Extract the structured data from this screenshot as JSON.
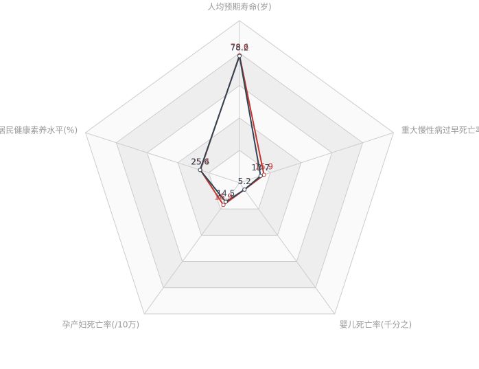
{
  "chart_data": {
    "type": "radar",
    "indicators": [
      {
        "name": "人均预期寿命(岁)",
        "max": 100
      },
      {
        "name": "重大慢性病过早死亡率(%)",
        "max": 100
      },
      {
        "name": "婴儿死亡率(千分之)",
        "max": 100
      },
      {
        "name": "孕产妇死亡率(/10万)",
        "max": 100
      },
      {
        "name": "居民健康素养水平(%)",
        "max": 100
      }
    ],
    "series": [
      {
        "color": "#c23531",
        "values": [
          78.6,
          15.9,
          5.2,
          16.9,
          25.4
        ]
      },
      {
        "color": "#2f4554",
        "values": [
          78.2,
          13.7,
          5.2,
          14.5,
          25.6
        ]
      }
    ],
    "split_number": 5,
    "split_area_colors": [
      "#fafafa",
      "#eeeeee"
    ],
    "axis_line_color": "#cccccc",
    "indicator_color": "#999999"
  }
}
